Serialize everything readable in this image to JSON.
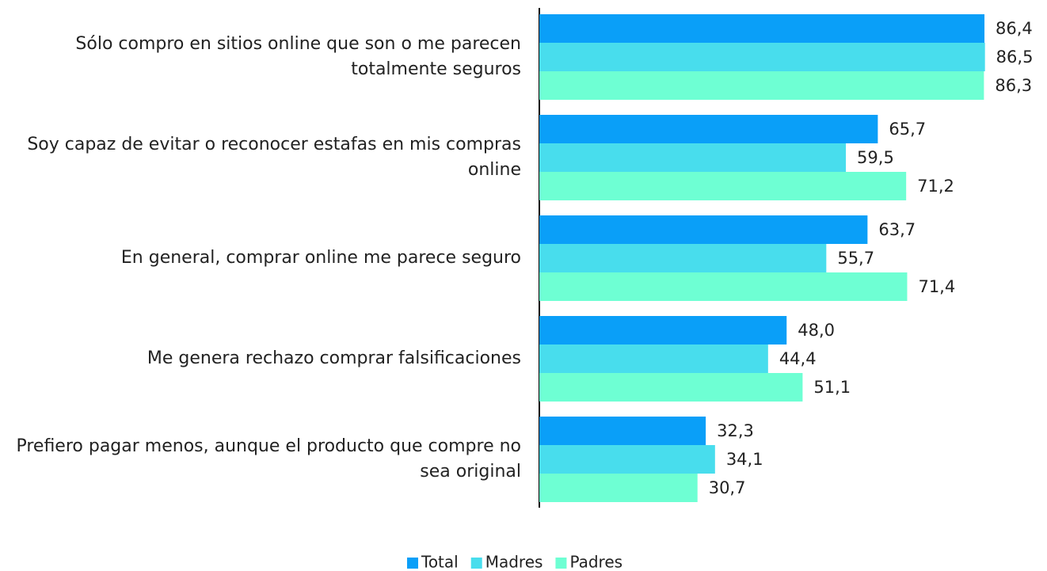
{
  "chart_data": {
    "type": "bar",
    "orientation": "horizontal",
    "categories": [
      "Sólo compro en sitios online que son o me parecen totalmente seguros",
      "Soy capaz de evitar o reconocer estafas en mis compras online",
      "En general, comprar online me parece seguro",
      "Me genera rechazo comprar falsificaciones",
      "Prefiero pagar menos, aunque el producto que compre no sea original"
    ],
    "series": [
      {
        "name": "Total",
        "color": "#0a9ff8",
        "values": [
          86.4,
          65.7,
          63.7,
          48.0,
          32.3
        ],
        "value_labels": [
          "86,4",
          "65,7",
          "63,7",
          "48,0",
          "32,3"
        ]
      },
      {
        "name": "Madres",
        "color": "#48dded",
        "values": [
          86.5,
          59.5,
          55.7,
          44.4,
          34.1
        ],
        "value_labels": [
          "86,5",
          "59,5",
          "55,7",
          "44,4",
          "34,1"
        ]
      },
      {
        "name": "Padres",
        "color": "#6effd3",
        "values": [
          86.3,
          71.2,
          71.4,
          51.1,
          30.7
        ],
        "value_labels": [
          "86,3",
          "71,2",
          "71,4",
          "51,1",
          "30,7"
        ]
      }
    ],
    "xlim": [
      0,
      100
    ],
    "legend": "bottom"
  }
}
